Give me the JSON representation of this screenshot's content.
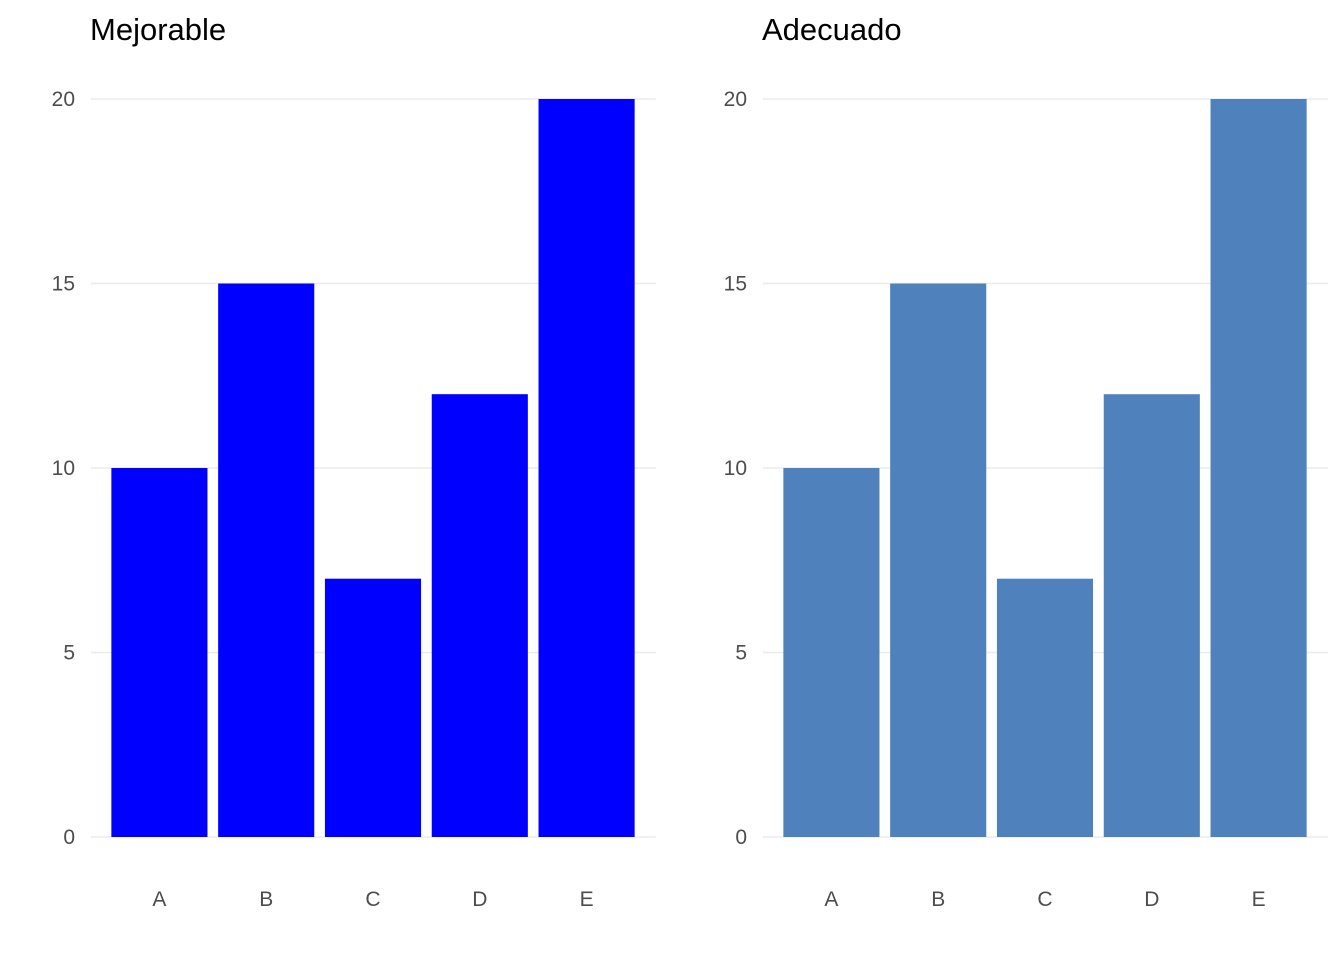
{
  "chart_data": [
    {
      "type": "bar",
      "title": "Mejorable",
      "categories": [
        "A",
        "B",
        "C",
        "D",
        "E"
      ],
      "values": [
        10,
        15,
        7,
        12,
        20
      ],
      "color": "#0000ff",
      "ylim": [
        0,
        20
      ],
      "yticks": [
        "0",
        "5",
        "10",
        "15",
        "20"
      ],
      "xlabel": "",
      "ylabel": "",
      "grid": "horizontal",
      "legend": "none"
    },
    {
      "type": "bar",
      "title": "Adecuado",
      "categories": [
        "A",
        "B",
        "C",
        "D",
        "E"
      ],
      "values": [
        10,
        15,
        7,
        12,
        20
      ],
      "color": "#4f81bd",
      "ylim": [
        0,
        20
      ],
      "yticks": [
        "0",
        "5",
        "10",
        "15",
        "20"
      ],
      "xlabel": "",
      "ylabel": "",
      "grid": "horizontal",
      "legend": "none"
    }
  ]
}
